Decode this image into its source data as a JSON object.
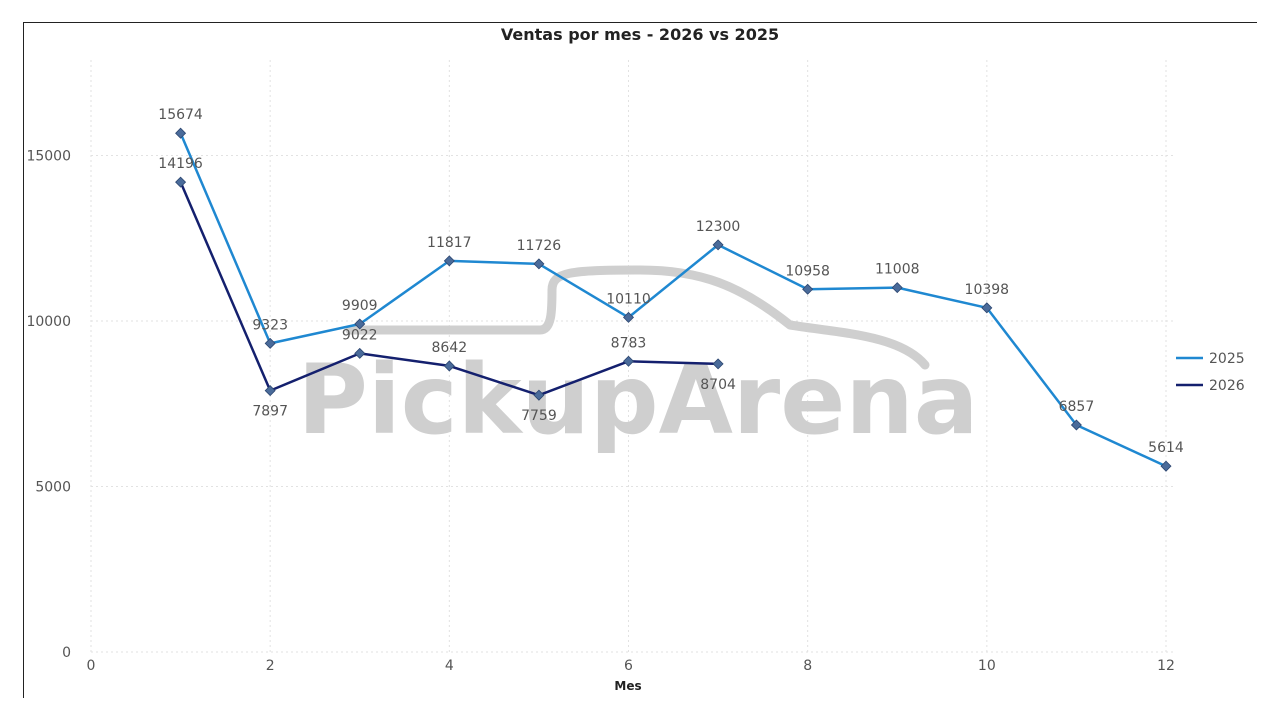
{
  "watermark": {
    "text": "PickupArena"
  },
  "chart_data": {
    "type": "line",
    "title": "Ventas por mes - 2026 vs 2025",
    "xlabel": "Mes",
    "ylabel": "",
    "xlim": [
      0,
      12
    ],
    "ylim": [
      0,
      17000
    ],
    "xticks": [
      0,
      2,
      4,
      6,
      8,
      10,
      12
    ],
    "yticks": [
      0,
      5000,
      10000,
      15000
    ],
    "grid": true,
    "legend_position": "right",
    "series": [
      {
        "name": "2025",
        "color": "#1f88d1",
        "x": [
          1,
          2,
          3,
          4,
          5,
          6,
          7,
          8,
          9,
          10,
          11,
          12
        ],
        "values": [
          15674,
          9323,
          9909,
          11817,
          11726,
          10110,
          12300,
          10958,
          11008,
          10398,
          6857,
          5614
        ],
        "label_pos": [
          "above",
          "above",
          "above",
          "above",
          "above",
          "above",
          "above",
          "above",
          "above",
          "above",
          "above",
          "above"
        ]
      },
      {
        "name": "2026",
        "color": "#14206e",
        "x": [
          1,
          2,
          3,
          4,
          5,
          6,
          7
        ],
        "values": [
          14196,
          7897,
          9022,
          8642,
          7759,
          8783,
          8704
        ],
        "label_pos": [
          "above",
          "below",
          "above",
          "above",
          "below",
          "above",
          "below"
        ]
      }
    ]
  }
}
